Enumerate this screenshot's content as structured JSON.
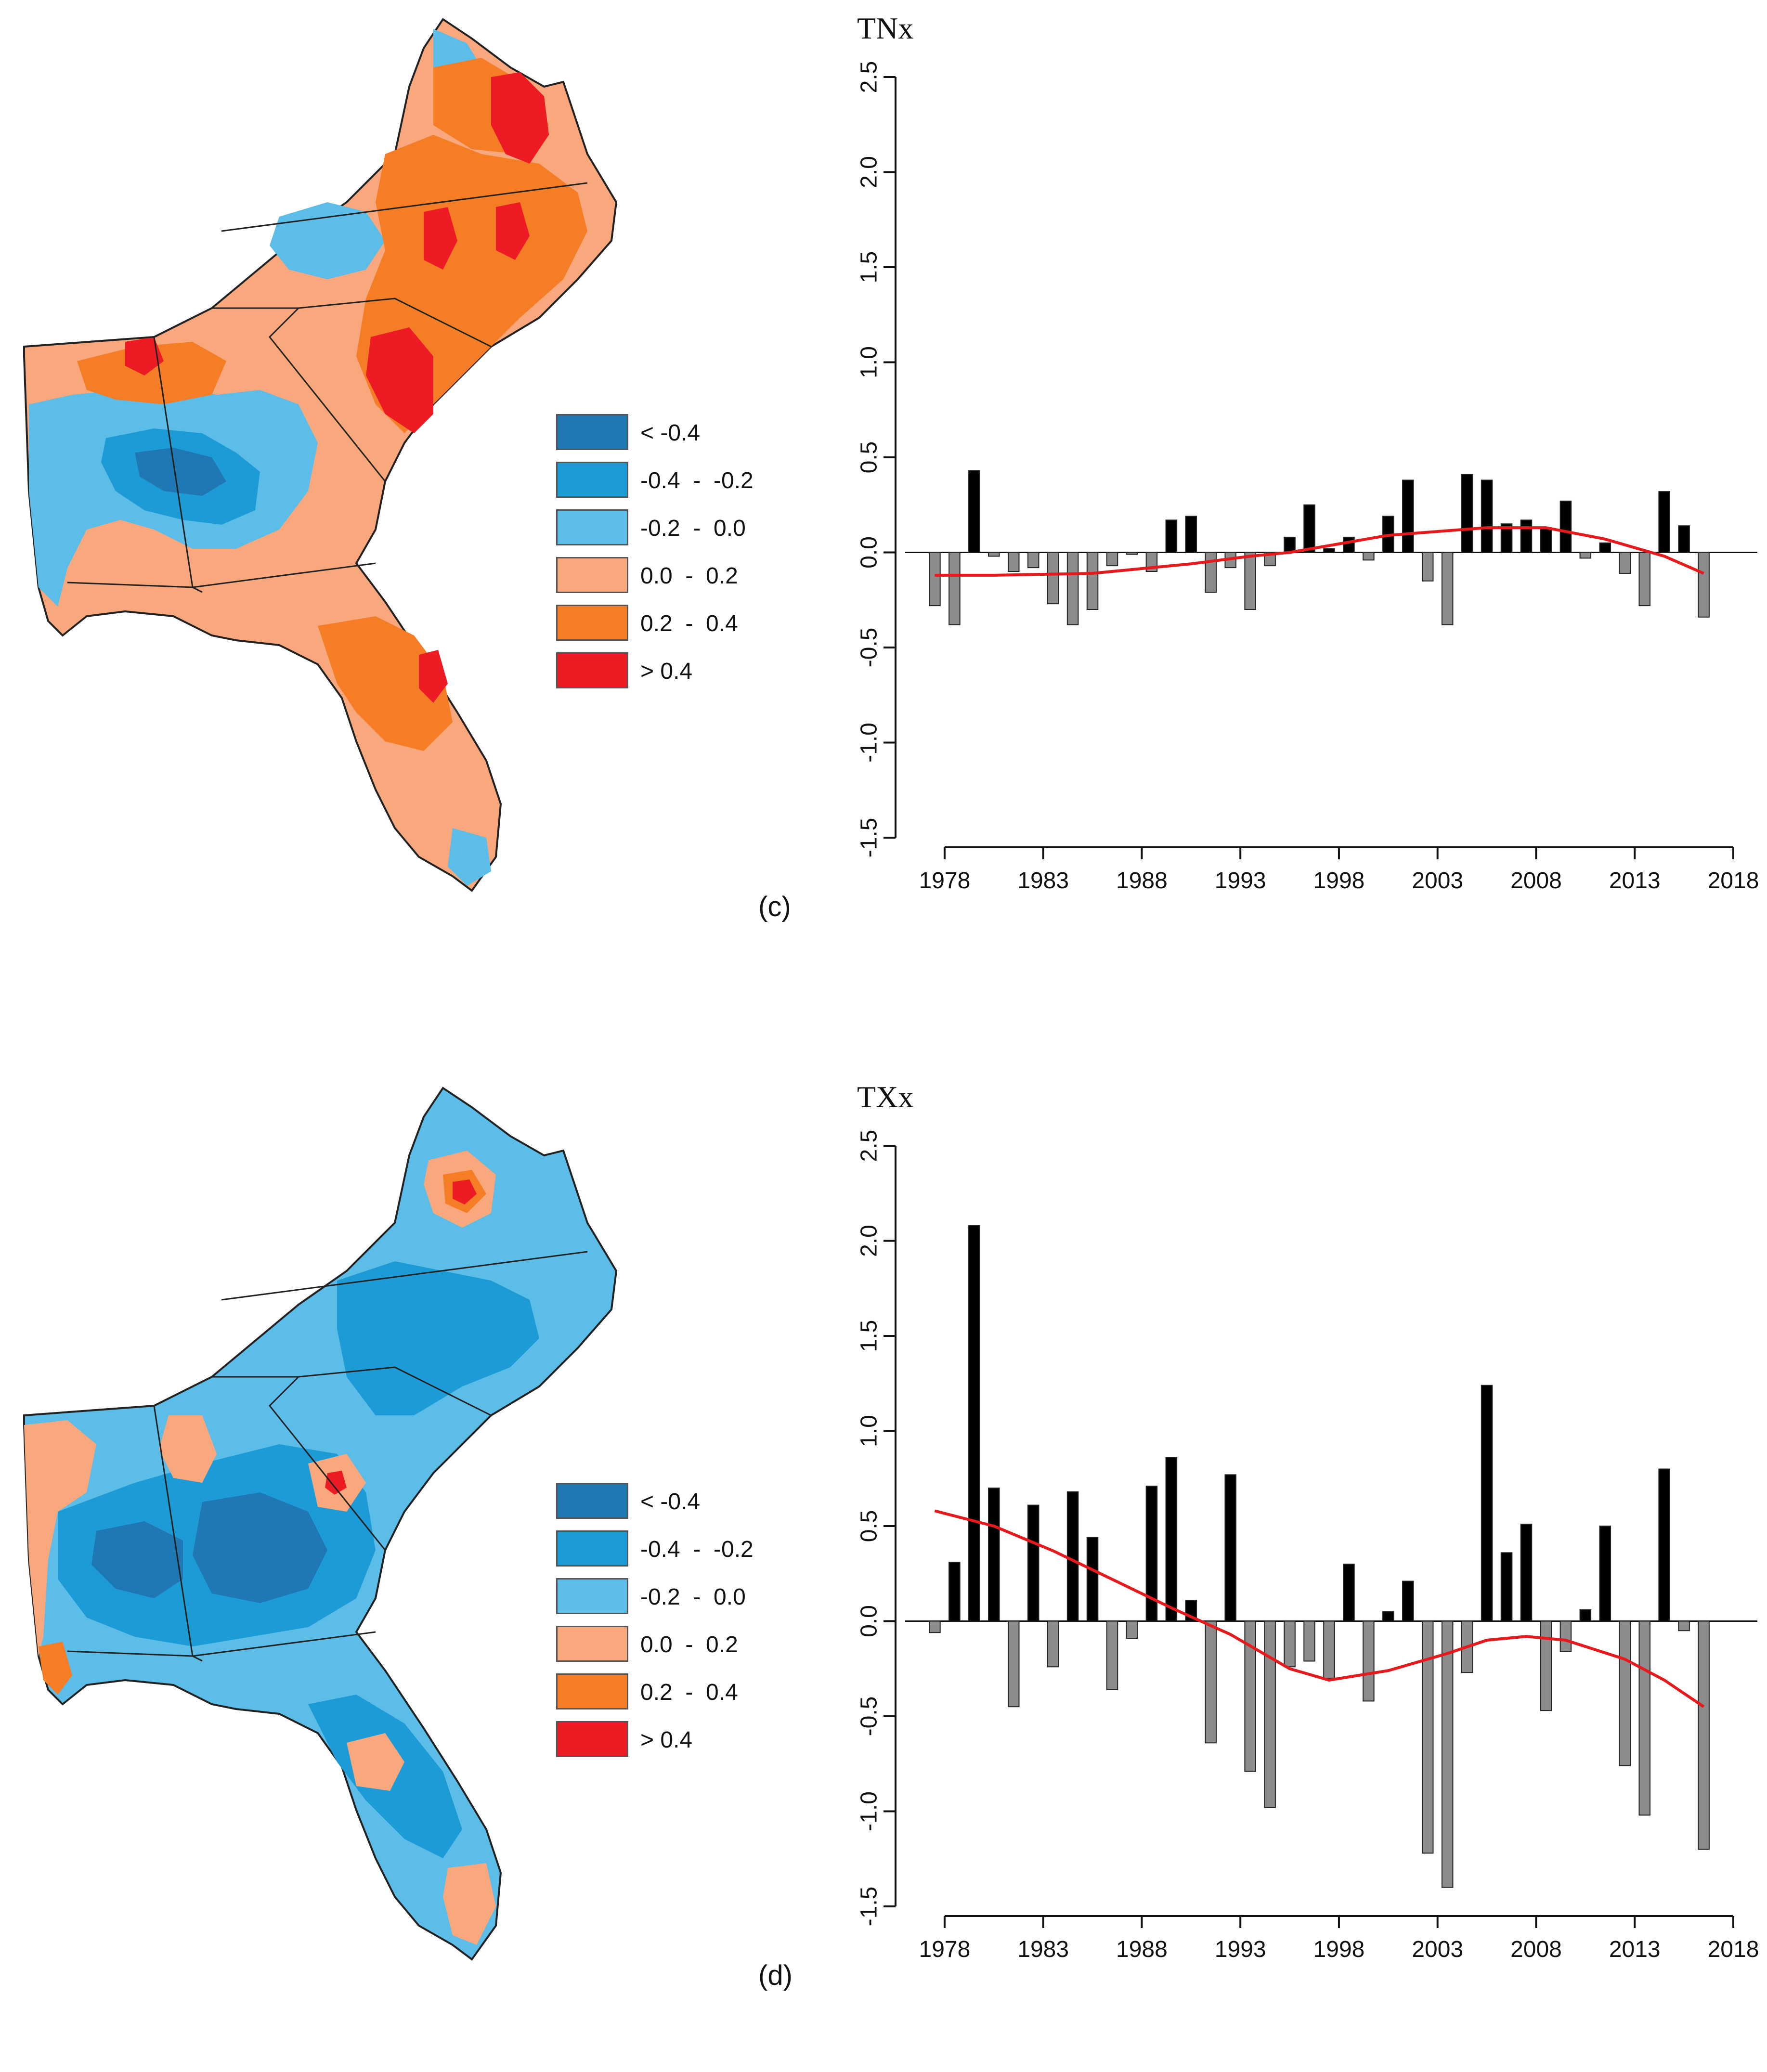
{
  "legend": {
    "items": [
      {
        "label": "< -0.4",
        "color": "#1f78b4"
      },
      {
        "label": "-0.4  -  -0.2",
        "color": "#1d9bd6"
      },
      {
        "label": "-0.2  -  0.0",
        "color": "#5bbde8"
      },
      {
        "label": "0.0  -  0.2",
        "color": "#f9a77c"
      },
      {
        "label": "0.2  -  0.4",
        "color": "#f57d26"
      },
      {
        "label": "> 0.4",
        "color": "#ed1c24"
      }
    ]
  },
  "panels": [
    {
      "label": "(c)"
    },
    {
      "label": "(d)"
    }
  ],
  "chart_data": [
    {
      "type": "bar",
      "title": "TNx",
      "xlabel": "",
      "ylabel": "",
      "ylim": [
        -1.5,
        2.5
      ],
      "yticks": [
        "2.5",
        "2.0",
        "1.5",
        "1.0",
        "0.5",
        "0.0",
        "-0.5",
        "-1.0",
        "-1.5"
      ],
      "xticks": [
        "1978",
        "1983",
        "1988",
        "1993",
        "1998",
        "2003",
        "2008",
        "2013",
        "2018"
      ],
      "x": [
        1977,
        1978,
        1979,
        1980,
        1981,
        1982,
        1983,
        1984,
        1985,
        1986,
        1987,
        1988,
        1989,
        1990,
        1991,
        1992,
        1993,
        1994,
        1995,
        1996,
        1997,
        1998,
        1999,
        2000,
        2001,
        2002,
        2003,
        2004,
        2005,
        2006,
        2007,
        2008,
        2009,
        2010,
        2011,
        2012,
        2013,
        2014,
        2015,
        2016
      ],
      "values": [
        -0.28,
        -0.38,
        0.43,
        -0.02,
        -0.1,
        -0.08,
        -0.27,
        -0.38,
        -0.3,
        -0.07,
        -0.01,
        -0.1,
        0.17,
        0.19,
        -0.21,
        -0.08,
        -0.3,
        -0.07,
        0.08,
        0.25,
        0.02,
        0.08,
        -0.04,
        0.19,
        0.38,
        -0.15,
        -0.38,
        0.41,
        0.38,
        0.15,
        0.17,
        0.13,
        0.27,
        -0.03,
        0.05,
        -0.11,
        -0.28,
        0.32,
        0.14,
        -0.34
      ],
      "trend": {
        "name": "smoothed trend",
        "color": "#e41a1c",
        "x": [
          1977,
          1980,
          1985,
          1990,
          1993,
          1995,
          2000,
          2005,
          2008,
          2011,
          2014,
          2016
        ],
        "values": [
          -0.12,
          -0.12,
          -0.11,
          -0.06,
          -0.02,
          0.0,
          0.09,
          0.13,
          0.13,
          0.07,
          -0.02,
          -0.11
        ]
      }
    },
    {
      "type": "bar",
      "title": "TXx",
      "xlabel": "",
      "ylabel": "",
      "ylim": [
        -1.5,
        2.5
      ],
      "yticks": [
        "2.5",
        "2.0",
        "1.5",
        "1.0",
        "0.5",
        "0.0",
        "-0.5",
        "-1.0",
        "-1.5"
      ],
      "xticks": [
        "1978",
        "1983",
        "1988",
        "1993",
        "1998",
        "2003",
        "2008",
        "2013",
        "2018"
      ],
      "x": [
        1977,
        1978,
        1979,
        1980,
        1981,
        1982,
        1983,
        1984,
        1985,
        1986,
        1987,
        1988,
        1989,
        1990,
        1991,
        1992,
        1993,
        1994,
        1995,
        1996,
        1997,
        1998,
        1999,
        2000,
        2001,
        2002,
        2003,
        2004,
        2005,
        2006,
        2007,
        2008,
        2009,
        2010,
        2011,
        2012,
        2013,
        2014,
        2015,
        2016
      ],
      "values": [
        -0.06,
        0.31,
        2.08,
        0.7,
        -0.45,
        0.61,
        -0.24,
        0.68,
        0.44,
        -0.36,
        -0.09,
        0.71,
        0.86,
        0.11,
        -0.64,
        0.77,
        -0.79,
        -0.98,
        -0.24,
        -0.21,
        -0.3,
        0.3,
        -0.42,
        0.05,
        0.21,
        -1.22,
        -1.4,
        -0.27,
        1.24,
        0.36,
        0.51,
        -0.47,
        -0.16,
        0.06,
        0.5,
        -0.76,
        -1.02,
        0.8,
        -0.05,
        -1.2
      ],
      "trend": {
        "name": "smoothed trend",
        "color": "#e41a1c",
        "x": [
          1977,
          1980,
          1983,
          1986,
          1989,
          1992,
          1995,
          1997,
          2000,
          2003,
          2005,
          2007,
          2009,
          2012,
          2014,
          2016
        ],
        "values": [
          0.58,
          0.5,
          0.37,
          0.22,
          0.07,
          -0.07,
          -0.25,
          -0.31,
          -0.26,
          -0.17,
          -0.1,
          -0.08,
          -0.1,
          -0.2,
          -0.31,
          -0.45
        ]
      }
    }
  ]
}
